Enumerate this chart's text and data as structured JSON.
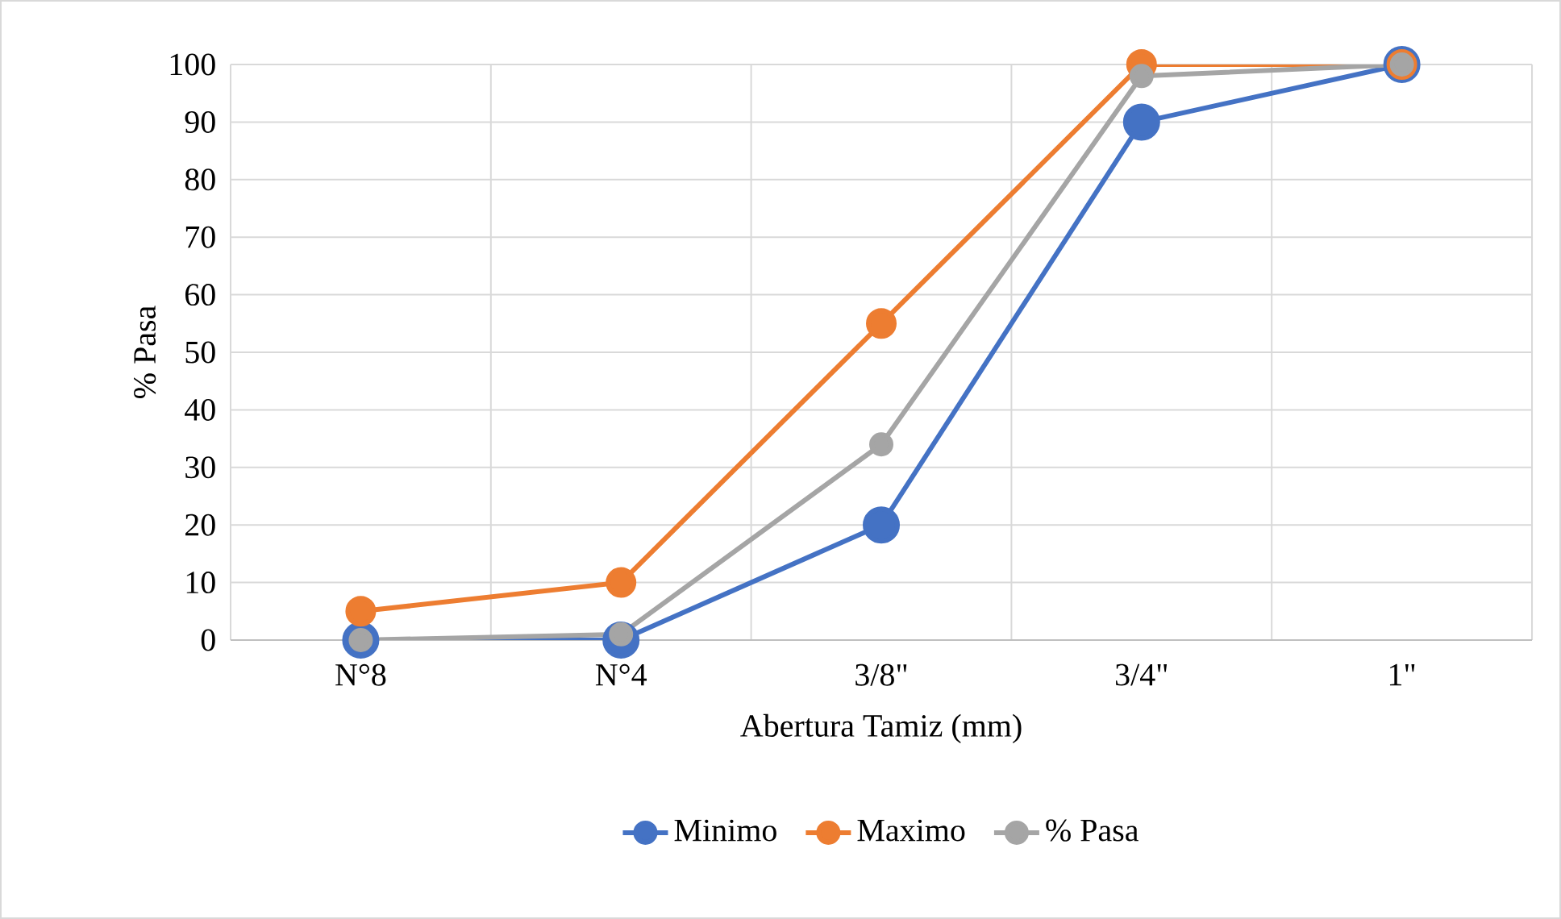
{
  "chart_data": {
    "type": "line",
    "xlabel": "Abertura Tamiz (mm)",
    "ylabel": "% Pasa",
    "categories": [
      "N°8",
      "N°4",
      "3/8\"",
      "3/4\"",
      "1\""
    ],
    "series": [
      {
        "name": "Minimo",
        "color": "#4472c4",
        "values": [
          0,
          0,
          20,
          90,
          100
        ]
      },
      {
        "name": "Maximo",
        "color": "#ed7d31",
        "values": [
          5,
          10,
          55,
          100,
          100
        ]
      },
      {
        "name": "% Pasa",
        "color": "#a5a5a5",
        "values": [
          0,
          1,
          34,
          98,
          100
        ]
      }
    ],
    "ylim": [
      0,
      100
    ],
    "yticks": [
      0,
      10,
      20,
      30,
      40,
      50,
      60,
      70,
      80,
      90,
      100
    ],
    "grid": true,
    "legend": "bottom",
    "marker": "circle",
    "line_style": "solid"
  }
}
